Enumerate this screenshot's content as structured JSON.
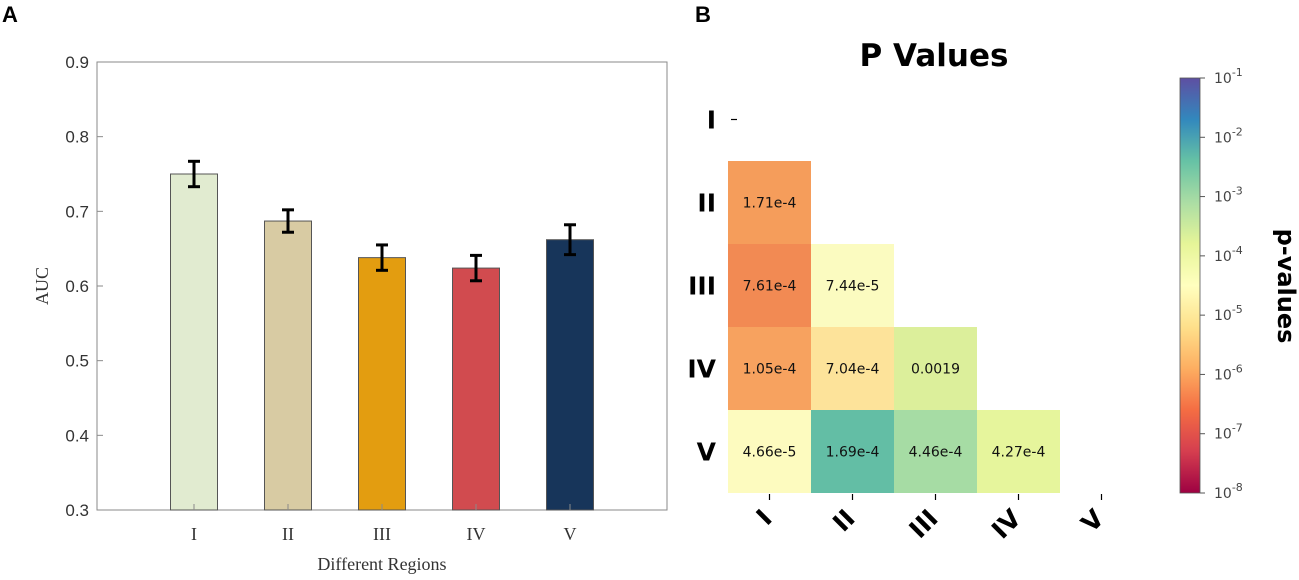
{
  "panels": {
    "a_label": "A",
    "b_label": "B"
  },
  "chart_data": [
    {
      "type": "bar",
      "title": "",
      "xlabel": "Different Regions",
      "ylabel": "AUC",
      "categories": [
        "I",
        "II",
        "III",
        "IV",
        "V"
      ],
      "values": [
        0.75,
        0.687,
        0.638,
        0.624,
        0.662
      ],
      "errors": [
        0.017,
        0.015,
        0.017,
        0.017,
        0.02
      ],
      "colors": [
        "#e1ebd0",
        "#d8cba3",
        "#e39d10",
        "#d14b4f",
        "#17355a"
      ],
      "ylim": [
        0.3,
        0.9
      ],
      "yticks": [
        "0.3",
        "0.4",
        "0.5",
        "0.6",
        "0.7",
        "0.8",
        "0.9"
      ],
      "grid": false
    },
    {
      "type": "heatmap",
      "title": "P Values",
      "rows": [
        "I",
        "II",
        "III",
        "IV",
        "V"
      ],
      "cols": [
        "I",
        "II",
        "III",
        "IV",
        "V"
      ],
      "cells": [
        {
          "row": 1,
          "col": 0,
          "label": "1.71e-4",
          "value": 0.000171,
          "color": "#f59d5b"
        },
        {
          "row": 2,
          "col": 0,
          "label": "7.61e-4",
          "value": 0.000761,
          "color": "#f28a53"
        },
        {
          "row": 2,
          "col": 1,
          "label": "7.44e-5",
          "value": 7.44e-05,
          "color": "#fbfbc0"
        },
        {
          "row": 3,
          "col": 0,
          "label": "1.05e-4",
          "value": 0.000105,
          "color": "#f7a25f"
        },
        {
          "row": 3,
          "col": 1,
          "label": "7.04e-4",
          "value": 0.000704,
          "color": "#fde39a"
        },
        {
          "row": 3,
          "col": 2,
          "label": "0.0019",
          "value": 0.0019,
          "color": "#dcef9b"
        },
        {
          "row": 4,
          "col": 0,
          "label": "4.66e-5",
          "value": 4.66e-05,
          "color": "#fdfbbf"
        },
        {
          "row": 4,
          "col": 1,
          "label": "1.69e-4",
          "value": 0.000169,
          "color": "#63bea5"
        },
        {
          "row": 4,
          "col": 2,
          "label": "4.46e-4",
          "value": 0.000446,
          "color": "#a6dca4"
        },
        {
          "row": 4,
          "col": 3,
          "label": "4.27e-4",
          "value": 0.000427,
          "color": "#e6f59c"
        }
      ],
      "colorbar": {
        "label": "p-values",
        "scale": "log",
        "range_exponents": [
          -8,
          -1
        ],
        "tick_base": "10",
        "tick_exponents": [
          "-1",
          "-2",
          "-3",
          "-4",
          "-5",
          "-6",
          "-7",
          "-8"
        ],
        "colormap": [
          "#9e0142",
          "#d53e4f",
          "#f46d43",
          "#fdae61",
          "#fee08b",
          "#ffffbf",
          "#e6f598",
          "#abdda4",
          "#66c2a5",
          "#3288bd",
          "#5e4fa2"
        ]
      }
    }
  ]
}
